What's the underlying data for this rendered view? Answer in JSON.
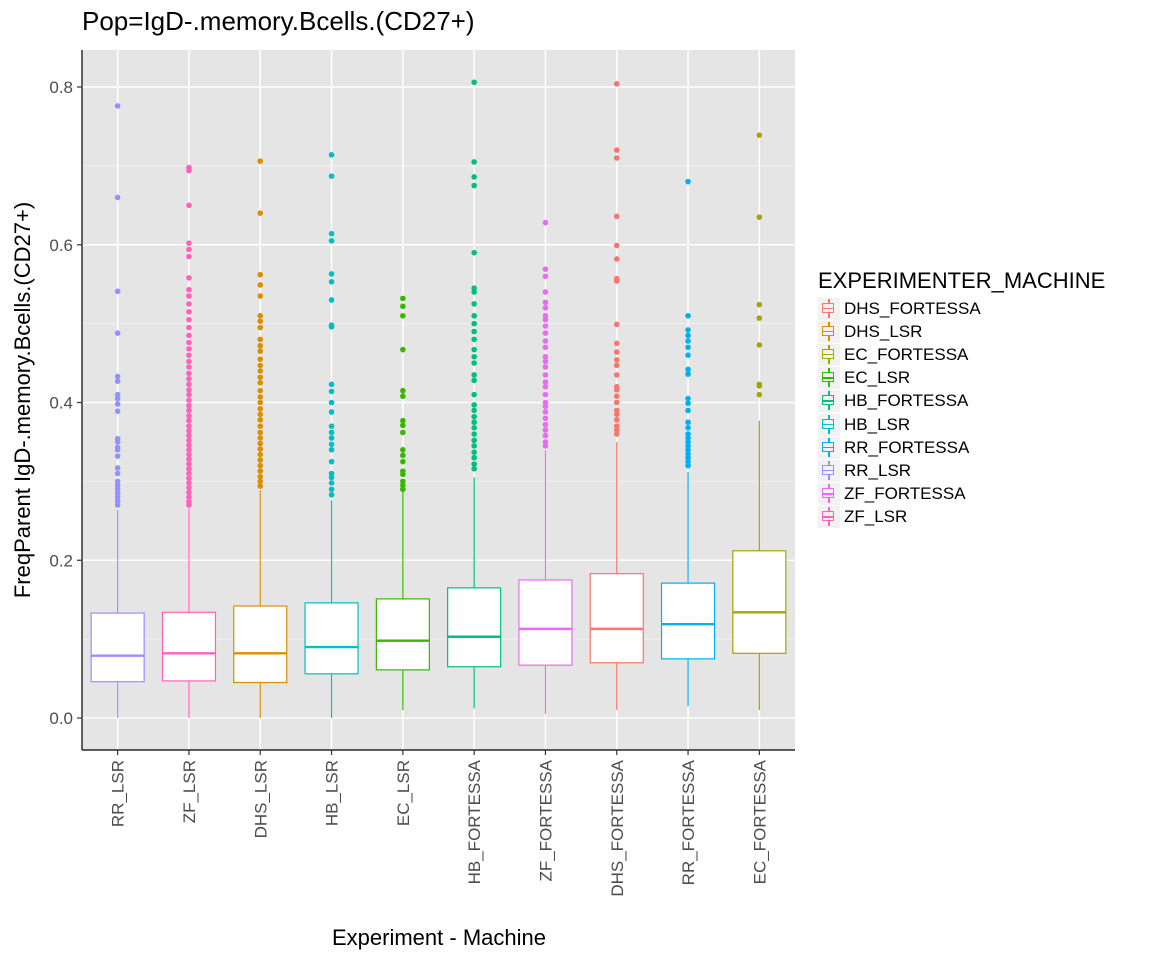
{
  "chart_data": {
    "type": "boxplot",
    "title": "Pop=IgD-.memory.Bcells.(CD27+)",
    "xlabel": "Experiment - Machine",
    "ylabel": "FreqParent  IgD-.memory.Bcells.(CD27+)",
    "ylim": [
      -0.04,
      0.85
    ],
    "yticks": [
      0.0,
      0.2,
      0.4,
      0.6,
      0.8
    ],
    "ytick_labels": [
      "0.0",
      "0.2",
      "0.4",
      "0.6",
      "0.8"
    ],
    "grid": true,
    "legend_title": "EXPERIMENTER_MACHINE",
    "legend_placement": "right",
    "legend": [
      {
        "name": "DHS_FORTESSA",
        "color": "#F8766D"
      },
      {
        "name": "DHS_LSR",
        "color": "#D89000"
      },
      {
        "name": "EC_FORTESSA",
        "color": "#A3A500"
      },
      {
        "name": "EC_LSR",
        "color": "#39B600"
      },
      {
        "name": "HB_FORTESSA",
        "color": "#00BF7D"
      },
      {
        "name": "HB_LSR",
        "color": "#00BFC4"
      },
      {
        "name": "RR_FORTESSA",
        "color": "#00B0F6"
      },
      {
        "name": "RR_LSR",
        "color": "#9590FF"
      },
      {
        "name": "ZF_FORTESSA",
        "color": "#E76BF3"
      },
      {
        "name": "ZF_LSR",
        "color": "#FF62BC"
      }
    ],
    "categories": [
      "RR_LSR",
      "ZF_LSR",
      "DHS_LSR",
      "HB_LSR",
      "EC_LSR",
      "HB_FORTESSA",
      "ZF_FORTESSA",
      "DHS_FORTESSA",
      "RR_FORTESSA",
      "EC_FORTESSA"
    ],
    "boxes": [
      {
        "name": "RR_LSR",
        "color": "#9590FF",
        "whisker_low": 0.0,
        "q1": 0.046,
        "median": 0.079,
        "q3": 0.133,
        "whisker_high": 0.264,
        "outliers": [
          0.776,
          0.66,
          0.541,
          0.488,
          0.433,
          0.427,
          0.41,
          0.405,
          0.398,
          0.389,
          0.354,
          0.35,
          0.343,
          0.34,
          0.332,
          0.317,
          0.31,
          0.3,
          0.295,
          0.29,
          0.285,
          0.28,
          0.275,
          0.27
        ]
      },
      {
        "name": "ZF_LSR",
        "color": "#FF62BC",
        "whisker_low": 0.0,
        "q1": 0.047,
        "median": 0.082,
        "q3": 0.134,
        "whisker_high": 0.266,
        "outliers": [
          0.698,
          0.694,
          0.65,
          0.602,
          0.594,
          0.585,
          0.558,
          0.543,
          0.535,
          0.525,
          0.515,
          0.505,
          0.495,
          0.485,
          0.476,
          0.468,
          0.46,
          0.452,
          0.445,
          0.437,
          0.43,
          0.423,
          0.416,
          0.41,
          0.403,
          0.396,
          0.39,
          0.383,
          0.377,
          0.37,
          0.364,
          0.358,
          0.352,
          0.346,
          0.34,
          0.334,
          0.328,
          0.322,
          0.316,
          0.31,
          0.304,
          0.298,
          0.292,
          0.286,
          0.28,
          0.274,
          0.27
        ]
      },
      {
        "name": "DHS_LSR",
        "color": "#D89000",
        "whisker_low": 0.0,
        "q1": 0.045,
        "median": 0.082,
        "q3": 0.142,
        "whisker_high": 0.289,
        "outliers": [
          0.706,
          0.64,
          0.562,
          0.549,
          0.535,
          0.51,
          0.503,
          0.495,
          0.48,
          0.472,
          0.465,
          0.455,
          0.447,
          0.44,
          0.432,
          0.425,
          0.415,
          0.407,
          0.4,
          0.392,
          0.385,
          0.378,
          0.37,
          0.362,
          0.355,
          0.348,
          0.341,
          0.334,
          0.327,
          0.32,
          0.313,
          0.306,
          0.3,
          0.294
        ]
      },
      {
        "name": "HB_LSR",
        "color": "#00BFC4",
        "whisker_low": 0.0,
        "q1": 0.056,
        "median": 0.09,
        "q3": 0.146,
        "whisker_high": 0.276,
        "outliers": [
          0.714,
          0.687,
          0.614,
          0.605,
          0.563,
          0.553,
          0.53,
          0.498,
          0.496,
          0.423,
          0.414,
          0.4,
          0.388,
          0.37,
          0.362,
          0.355,
          0.347,
          0.34,
          0.325,
          0.31,
          0.305,
          0.298,
          0.29,
          0.283
        ]
      },
      {
        "name": "EC_LSR",
        "color": "#39B600",
        "whisker_low": 0.01,
        "q1": 0.061,
        "median": 0.098,
        "q3": 0.151,
        "whisker_high": 0.287,
        "outliers": [
          0.532,
          0.522,
          0.51,
          0.467,
          0.415,
          0.408,
          0.377,
          0.371,
          0.362,
          0.34,
          0.333,
          0.325,
          0.313,
          0.309,
          0.3,
          0.295,
          0.29
        ]
      },
      {
        "name": "HB_FORTESSA",
        "color": "#00BF7D",
        "whisker_low": 0.012,
        "q1": 0.065,
        "median": 0.103,
        "q3": 0.165,
        "whisker_high": 0.305,
        "outliers": [
          0.806,
          0.705,
          0.686,
          0.675,
          0.59,
          0.545,
          0.54,
          0.525,
          0.51,
          0.5,
          0.49,
          0.48,
          0.467,
          0.458,
          0.45,
          0.435,
          0.428,
          0.41,
          0.397,
          0.39,
          0.382,
          0.375,
          0.368,
          0.36,
          0.352,
          0.345,
          0.337,
          0.33,
          0.322,
          0.316
        ]
      },
      {
        "name": "ZF_FORTESSA",
        "color": "#E76BF3",
        "whisker_low": 0.005,
        "q1": 0.067,
        "median": 0.113,
        "q3": 0.175,
        "whisker_high": 0.34,
        "outliers": [
          0.628,
          0.569,
          0.56,
          0.54,
          0.527,
          0.52,
          0.51,
          0.505,
          0.497,
          0.488,
          0.478,
          0.47,
          0.458,
          0.452,
          0.445,
          0.435,
          0.426,
          0.42,
          0.41,
          0.4,
          0.395,
          0.388,
          0.38,
          0.372,
          0.365,
          0.358,
          0.35,
          0.345
        ]
      },
      {
        "name": "DHS_FORTESSA",
        "color": "#F8766D",
        "whisker_low": 0.01,
        "q1": 0.07,
        "median": 0.113,
        "q3": 0.183,
        "whisker_high": 0.35,
        "outliers": [
          0.804,
          0.72,
          0.71,
          0.636,
          0.599,
          0.582,
          0.557,
          0.554,
          0.499,
          0.475,
          0.464,
          0.454,
          0.447,
          0.435,
          0.42,
          0.416,
          0.408,
          0.4,
          0.39,
          0.385,
          0.378,
          0.37,
          0.365,
          0.36
        ]
      },
      {
        "name": "RR_FORTESSA",
        "color": "#00B0F6",
        "whisker_low": 0.015,
        "q1": 0.075,
        "median": 0.119,
        "q3": 0.171,
        "whisker_high": 0.312,
        "outliers": [
          0.68,
          0.51,
          0.492,
          0.485,
          0.478,
          0.47,
          0.46,
          0.442,
          0.436,
          0.405,
          0.399,
          0.39,
          0.375,
          0.368,
          0.36,
          0.355,
          0.35,
          0.345,
          0.34,
          0.335,
          0.33,
          0.325,
          0.32
        ]
      },
      {
        "name": "EC_FORTESSA",
        "color": "#A3A500",
        "whisker_low": 0.01,
        "q1": 0.082,
        "median": 0.134,
        "q3": 0.212,
        "whisker_high": 0.377,
        "outliers": [
          0.739,
          0.635,
          0.524,
          0.507,
          0.473,
          0.423,
          0.421,
          0.41
        ]
      }
    ]
  }
}
